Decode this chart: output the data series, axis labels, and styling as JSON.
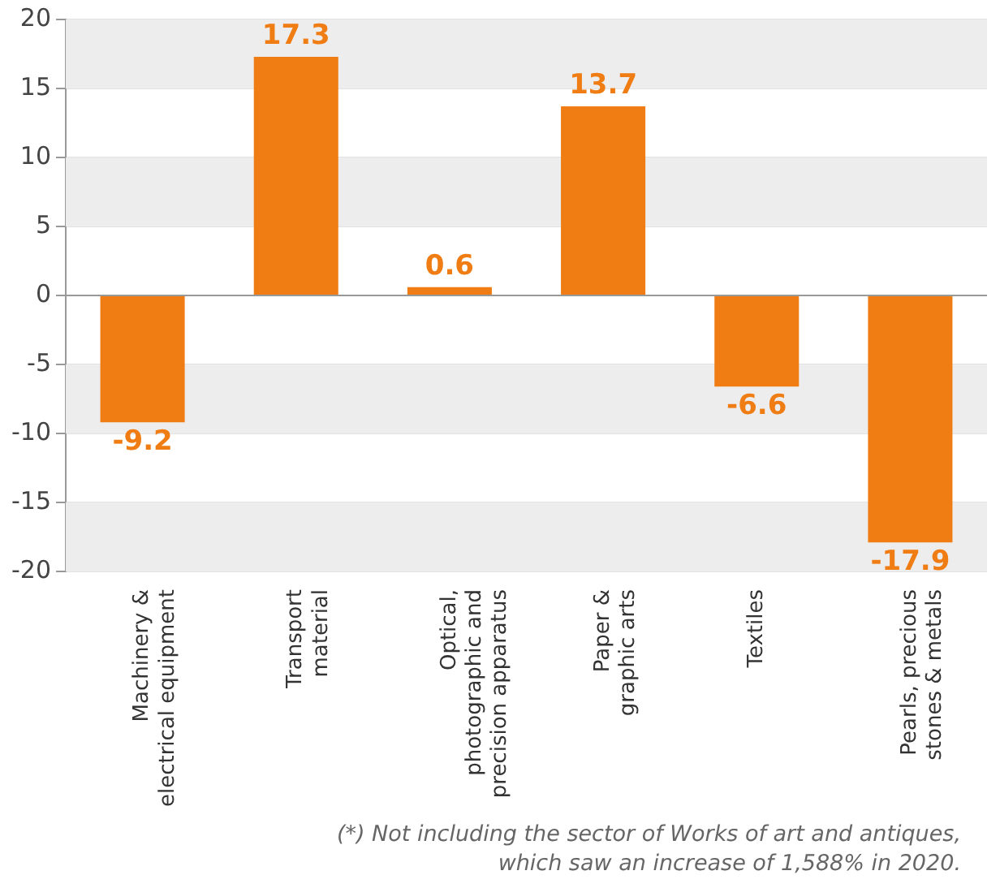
{
  "chart_data": {
    "type": "bar",
    "categories": [
      "Machinery & electrical equipment",
      "Transport material",
      "Optical, photographic and precision apparatus",
      "Paper & graphic arts",
      "Textiles",
      "Pearls, precious stones & metals"
    ],
    "values": [
      -9.2,
      17.3,
      0.6,
      13.7,
      -6.6,
      -17.9
    ],
    "color": "#f07d14",
    "ylim": [
      -20,
      20
    ],
    "yticks": [
      -20,
      -15,
      -10,
      -5,
      0,
      5,
      10,
      15,
      20
    ],
    "grid": "y",
    "legend": false,
    "data_labels": true,
    "bands": [
      {
        "axis": "y",
        "from": 15,
        "to": 20,
        "color": "#ededed"
      },
      {
        "axis": "y",
        "from": 5,
        "to": 10,
        "color": "#ededed"
      },
      {
        "axis": "y",
        "from": -10,
        "to": -5,
        "color": "#ededed"
      },
      {
        "axis": "y",
        "from": -20,
        "to": -15,
        "color": "#ededed"
      }
    ],
    "annotations": [
      "(*) Not including the sector of Works of art and antiques, which saw an increase of 1,588% in 2020."
    ]
  }
}
